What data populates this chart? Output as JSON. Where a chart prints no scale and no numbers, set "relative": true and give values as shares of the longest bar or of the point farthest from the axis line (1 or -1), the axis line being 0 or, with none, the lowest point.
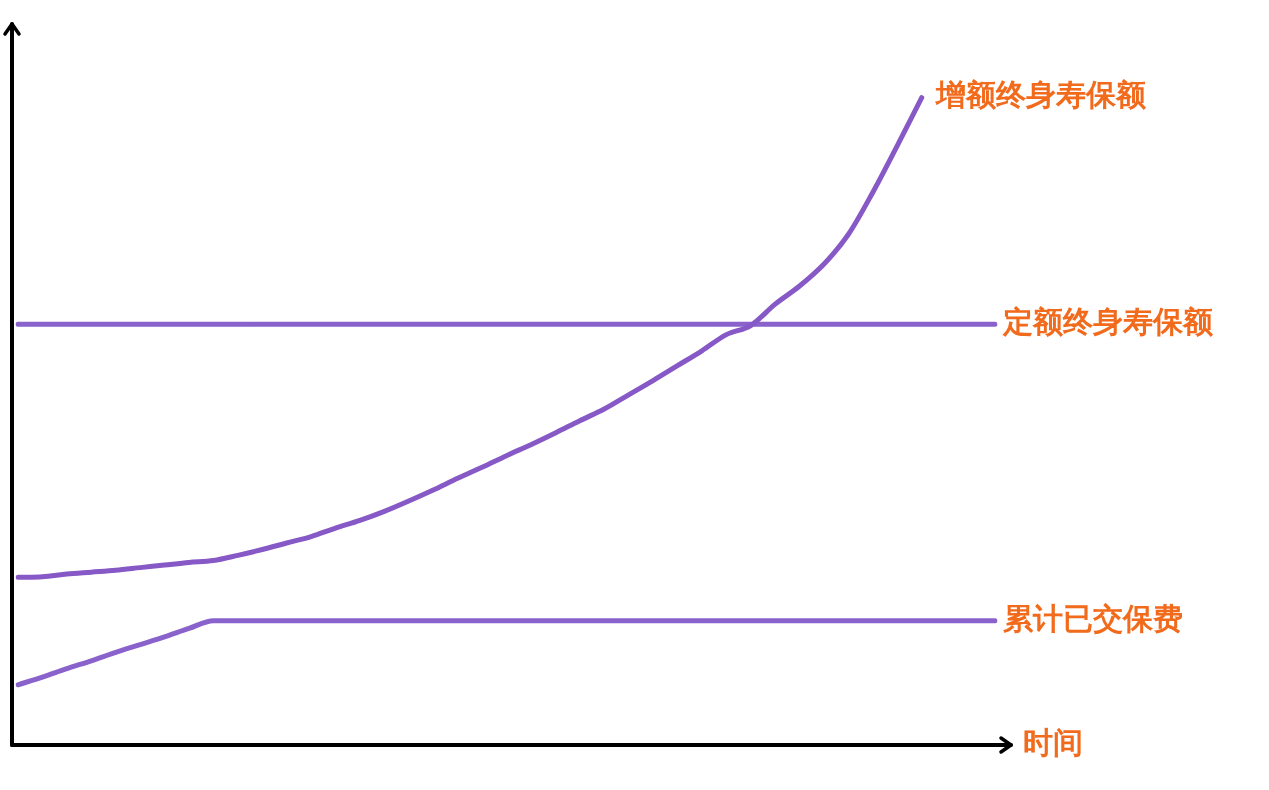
{
  "chart_data": {
    "type": "line",
    "relative": true,
    "xlabel": "时间",
    "legend": false,
    "marker": "none",
    "line_style": "solid",
    "categories": [
      null,
      null,
      null,
      null,
      null,
      null,
      null,
      null,
      null,
      null,
      null,
      null,
      null,
      null,
      null,
      null,
      null,
      null,
      null,
      null,
      null,
      null,
      null,
      null,
      null,
      null,
      null,
      null,
      null,
      null,
      null,
      null,
      null,
      null,
      null,
      null,
      null,
      null,
      null,
      null,
      null
    ],
    "series": [
      {
        "name": "增额终身寿保额",
        "color": "#8659c6",
        "values": [
          0.259,
          0.26,
          0.264,
          0.267,
          0.27,
          0.274,
          0.278,
          0.282,
          0.285,
          0.293,
          0.302,
          0.312,
          0.322,
          0.335,
          0.347,
          0.361,
          0.377,
          0.394,
          0.412,
          0.429,
          0.447,
          0.464,
          0.482,
          0.501,
          0.519,
          0.541,
          0.563,
          0.586,
          0.609,
          0.634,
          0.648,
          0.681,
          0.709,
          0.743,
          0.789,
          0.854,
          0.926,
          1,
          null,
          null,
          null
        ]
      },
      {
        "name": "定额终身寿保额",
        "color": "#8a62cc",
        "values": [
          0.65,
          0.65,
          0.65,
          0.65,
          0.65,
          0.65,
          0.65,
          0.65,
          0.65,
          0.65,
          0.65,
          0.65,
          0.65,
          0.65,
          0.65,
          0.65,
          0.65,
          0.65,
          0.65,
          0.65,
          0.65,
          0.65,
          0.65,
          0.65,
          0.65,
          0.65,
          0.65,
          0.65,
          0.65,
          0.65,
          0.65,
          0.65,
          0.65,
          0.65,
          0.65,
          0.65,
          0.65,
          0.65,
          0.65,
          0.65,
          0.65
        ]
      },
      {
        "name": "累计已交保费",
        "color": "#8a62cc",
        "values": [
          0.093,
          0.105,
          0.118,
          0.13,
          0.143,
          0.155,
          0.167,
          0.18,
          0.192,
          0.192,
          0.192,
          0.192,
          0.192,
          0.192,
          0.192,
          0.192,
          0.192,
          0.192,
          0.192,
          0.192,
          0.192,
          0.192,
          0.192,
          0.192,
          0.192,
          0.192,
          0.192,
          0.192,
          0.192,
          0.192,
          0.192,
          0.192,
          0.192,
          0.192,
          0.192,
          0.192,
          0.192,
          0.192,
          0.192,
          0.192,
          0.192
        ]
      }
    ]
  }
}
